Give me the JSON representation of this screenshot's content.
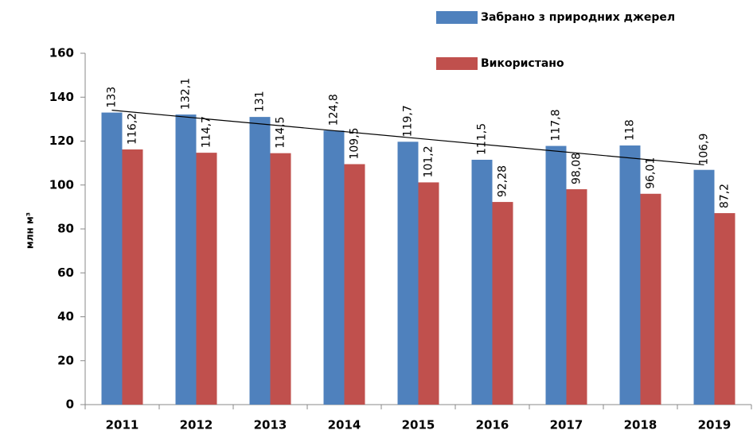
{
  "chart_data": {
    "type": "bar",
    "categories": [
      "2011",
      "2012",
      "2013",
      "2014",
      "2015",
      "2016",
      "2017",
      "2018",
      "2019"
    ],
    "y_axis_label": "млн м³",
    "ylim": [
      0,
      160
    ],
    "yticks": [
      0,
      20,
      40,
      60,
      80,
      100,
      120,
      140,
      160
    ],
    "grid": false,
    "legend": "top-right",
    "series": [
      {
        "name": "Забрано з природних джерел",
        "color": "#4f81bd",
        "trendline": "linear",
        "values": [
          133,
          132.1,
          131,
          124.8,
          119.7,
          111.5,
          117.8,
          118,
          106.9
        ],
        "value_labels": [
          "133",
          "132,1",
          "131",
          "124,8",
          "119,7",
          "111,5",
          "117,8",
          "118",
          "106,9"
        ]
      },
      {
        "name": "Використано",
        "color": "#c0504d",
        "values": [
          116.2,
          114.7,
          114.5,
          109.5,
          101.2,
          92.28,
          98.08,
          96.01,
          87.2
        ],
        "value_labels": [
          "116,2",
          "114,7",
          "114,5",
          "109,5",
          "101,2",
          "92,28",
          "98,08",
          "96,01",
          "87,2"
        ]
      }
    ]
  }
}
